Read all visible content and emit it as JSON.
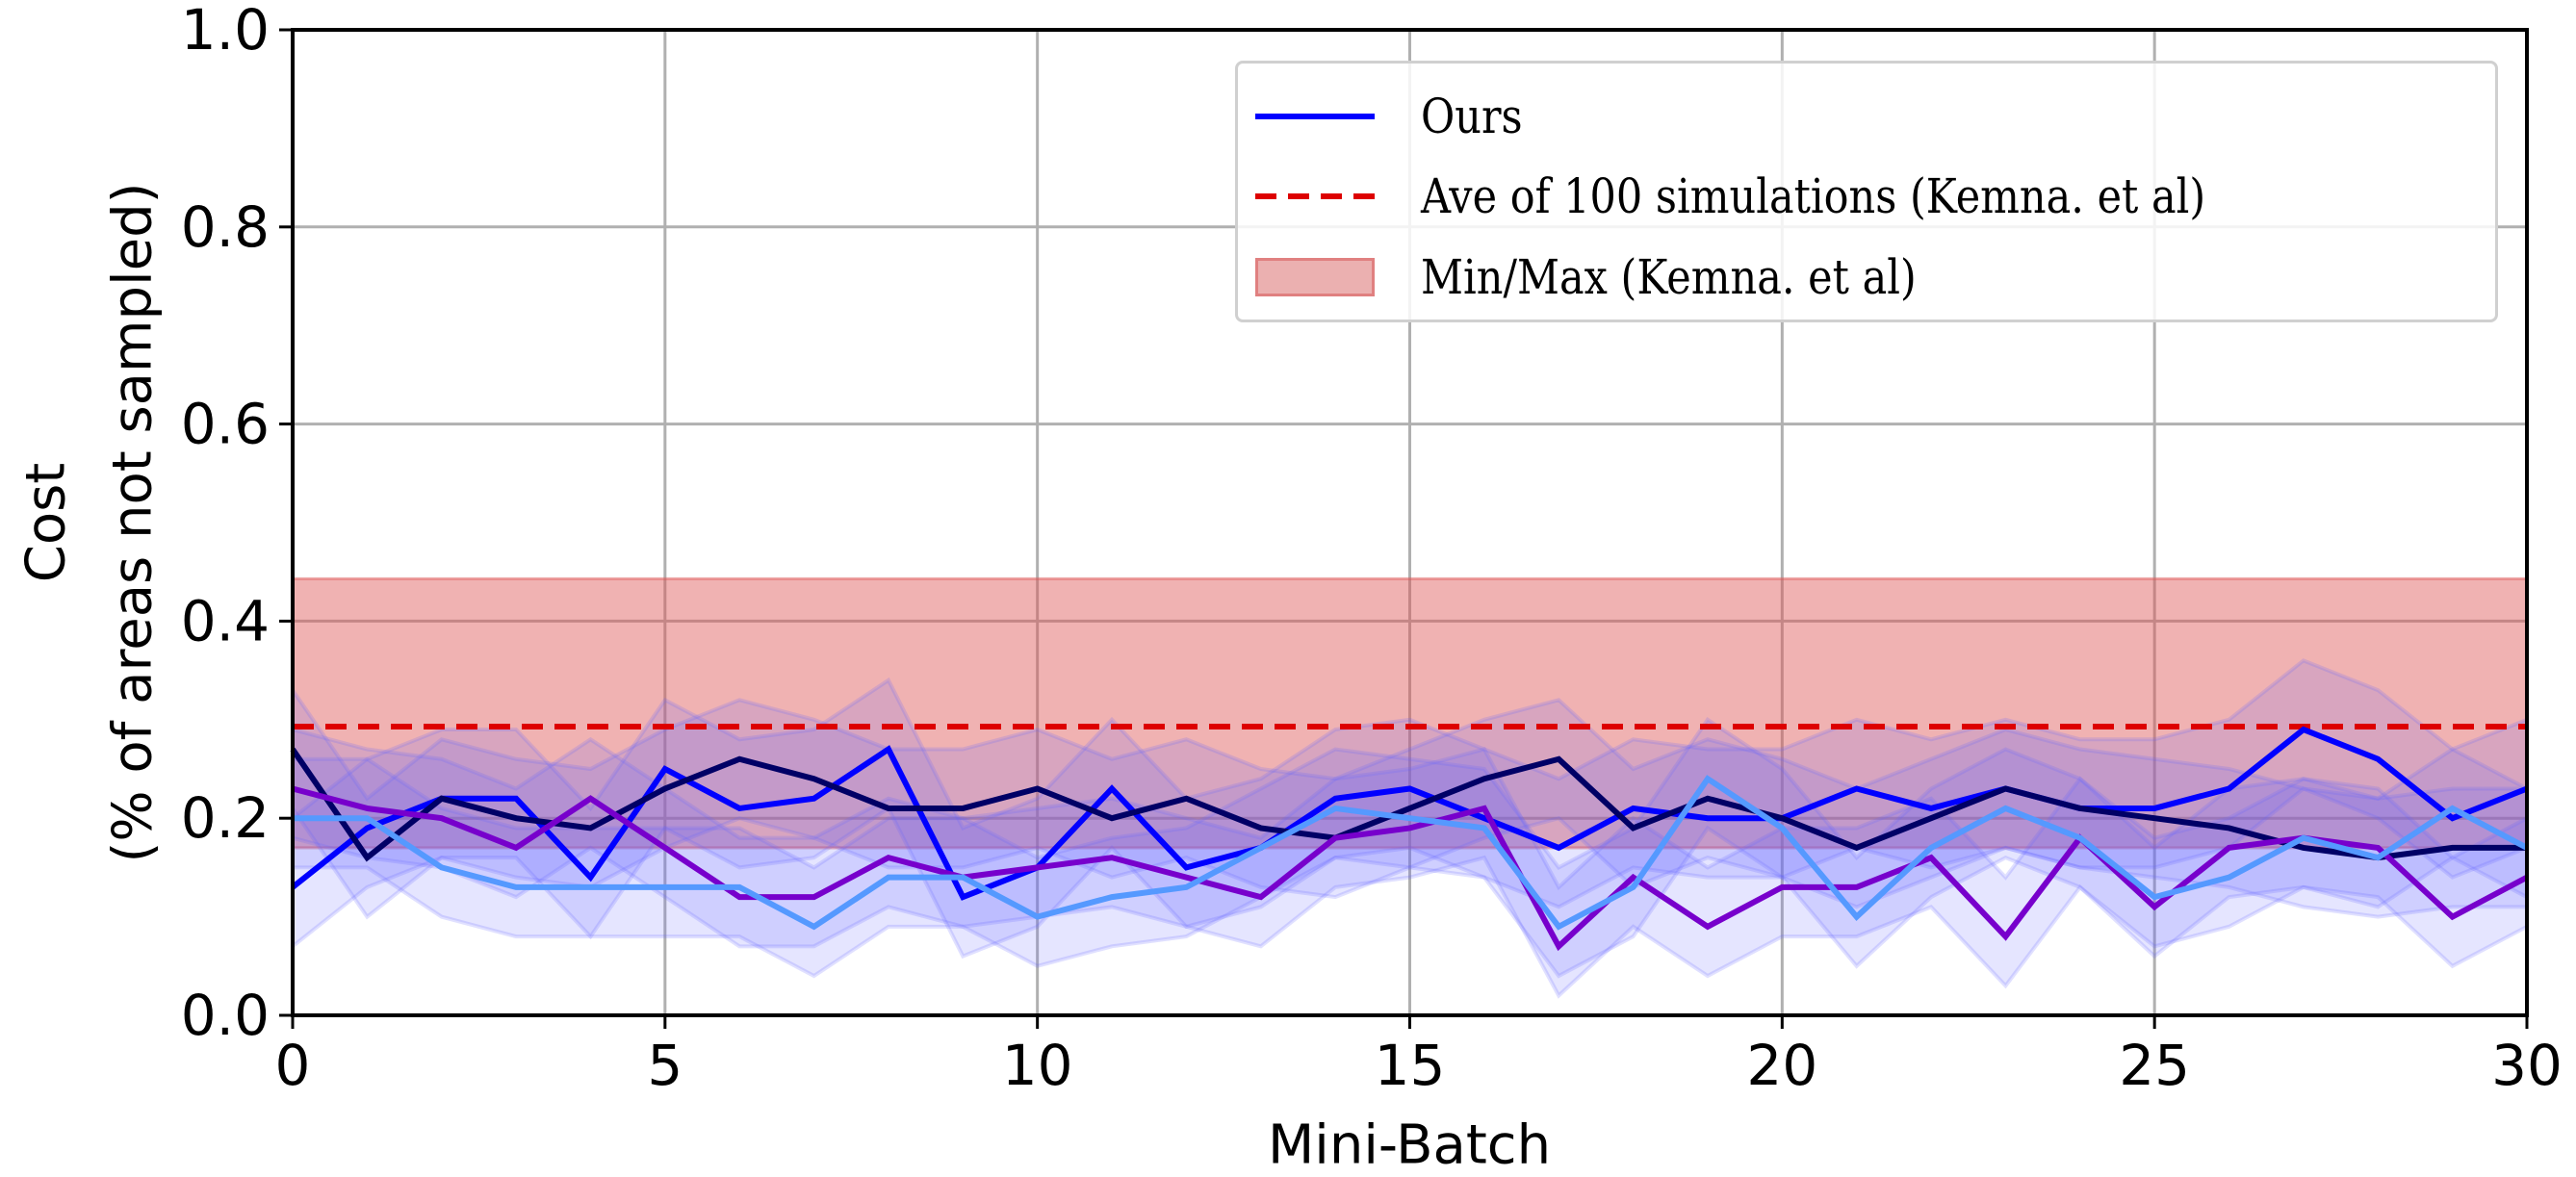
{
  "chart_data": {
    "type": "line",
    "title": "",
    "xlabel": "Mini-Batch",
    "ylabel_lines": [
      "Cost",
      "(% of areas not sampled)"
    ],
    "xlim": [
      0,
      30
    ],
    "ylim": [
      0,
      1.0
    ],
    "xticks": [
      "0",
      "5",
      "10",
      "15",
      "20",
      "25",
      "30"
    ],
    "yticks": [
      "0.0",
      "0.2",
      "0.4",
      "0.6",
      "0.8",
      "1.0"
    ],
    "grid": true,
    "legend_placement": "top-right",
    "legend": [
      "Ours",
      "Ave of 100 simulations (Kemna. et al)",
      "Min/Max (Kemna. et al)"
    ],
    "x": [
      0,
      1,
      2,
      3,
      4,
      5,
      6,
      7,
      8,
      9,
      10,
      11,
      12,
      13,
      14,
      15,
      16,
      17,
      18,
      19,
      20,
      21,
      22,
      23,
      24,
      25,
      26,
      27,
      28,
      29,
      30
    ],
    "reference": {
      "mean": 0.293,
      "min": 0.17,
      "max": 0.443,
      "mean_color": "#dd0000",
      "band_color": "#e08888"
    },
    "series": [
      {
        "name": "Ours",
        "color": "#0000ff",
        "values": [
          0.13,
          0.19,
          0.22,
          0.22,
          0.14,
          0.25,
          0.21,
          0.22,
          0.27,
          0.12,
          0.15,
          0.23,
          0.15,
          0.17,
          0.22,
          0.23,
          0.2,
          0.17,
          0.21,
          0.2,
          0.2,
          0.23,
          0.21,
          0.23,
          0.21,
          0.21,
          0.23,
          0.29,
          0.26,
          0.2,
          0.23
        ],
        "min": [
          0.07,
          0.13,
          0.16,
          0.16,
          0.08,
          0.19,
          0.15,
          0.16,
          0.21,
          0.06,
          0.09,
          0.17,
          0.09,
          0.11,
          0.16,
          0.17,
          0.14,
          0.11,
          0.15,
          0.14,
          0.14,
          0.17,
          0.15,
          0.17,
          0.15,
          0.15,
          0.17,
          0.23,
          0.2,
          0.14,
          0.17
        ],
        "max": [
          0.2,
          0.26,
          0.29,
          0.29,
          0.21,
          0.32,
          0.28,
          0.29,
          0.34,
          0.19,
          0.22,
          0.3,
          0.22,
          0.24,
          0.29,
          0.3,
          0.27,
          0.24,
          0.28,
          0.27,
          0.27,
          0.3,
          0.28,
          0.3,
          0.28,
          0.28,
          0.3,
          0.36,
          0.33,
          0.27,
          0.3
        ]
      },
      {
        "color": "#000066",
        "values": [
          0.27,
          0.16,
          0.22,
          0.2,
          0.19,
          0.23,
          0.26,
          0.24,
          0.21,
          0.21,
          0.23,
          0.2,
          0.22,
          0.19,
          0.18,
          0.21,
          0.24,
          0.26,
          0.19,
          0.22,
          0.2,
          0.17,
          0.2,
          0.23,
          0.21,
          0.2,
          0.19,
          0.17,
          0.16,
          0.17,
          0.17
        ],
        "min": [
          0.21,
          0.1,
          0.16,
          0.14,
          0.13,
          0.17,
          0.2,
          0.18,
          0.15,
          0.15,
          0.17,
          0.14,
          0.16,
          0.13,
          0.12,
          0.15,
          0.18,
          0.2,
          0.13,
          0.16,
          0.14,
          0.11,
          0.14,
          0.17,
          0.15,
          0.14,
          0.13,
          0.11,
          0.1,
          0.11,
          0.11
        ],
        "max": [
          0.33,
          0.22,
          0.28,
          0.26,
          0.25,
          0.29,
          0.32,
          0.3,
          0.27,
          0.27,
          0.29,
          0.26,
          0.28,
          0.25,
          0.24,
          0.27,
          0.3,
          0.32,
          0.25,
          0.28,
          0.26,
          0.23,
          0.26,
          0.29,
          0.27,
          0.26,
          0.25,
          0.23,
          0.22,
          0.23,
          0.23
        ]
      },
      {
        "color": "#7700cc",
        "values": [
          0.23,
          0.21,
          0.2,
          0.17,
          0.22,
          0.17,
          0.12,
          0.12,
          0.16,
          0.14,
          0.15,
          0.16,
          0.14,
          0.12,
          0.18,
          0.19,
          0.21,
          0.07,
          0.14,
          0.09,
          0.13,
          0.13,
          0.16,
          0.08,
          0.18,
          0.11,
          0.17,
          0.18,
          0.17,
          0.1,
          0.14
        ],
        "min": [
          0.18,
          0.16,
          0.15,
          0.12,
          0.17,
          0.12,
          0.07,
          0.07,
          0.11,
          0.09,
          0.1,
          0.11,
          0.09,
          0.07,
          0.13,
          0.14,
          0.16,
          0.02,
          0.09,
          0.04,
          0.08,
          0.08,
          0.11,
          0.03,
          0.13,
          0.06,
          0.12,
          0.13,
          0.12,
          0.05,
          0.09
        ],
        "max": [
          0.29,
          0.27,
          0.26,
          0.23,
          0.28,
          0.23,
          0.18,
          0.18,
          0.22,
          0.2,
          0.21,
          0.22,
          0.2,
          0.18,
          0.24,
          0.25,
          0.27,
          0.13,
          0.2,
          0.15,
          0.19,
          0.19,
          0.22,
          0.14,
          0.24,
          0.17,
          0.23,
          0.24,
          0.23,
          0.16,
          0.2
        ]
      },
      {
        "color": "#5599ff",
        "values": [
          0.2,
          0.2,
          0.15,
          0.13,
          0.13,
          0.13,
          0.13,
          0.09,
          0.14,
          0.14,
          0.1,
          0.12,
          0.13,
          0.17,
          0.21,
          0.2,
          0.19,
          0.09,
          0.13,
          0.24,
          0.19,
          0.1,
          0.17,
          0.21,
          0.18,
          0.12,
          0.14,
          0.18,
          0.16,
          0.21,
          0.17
        ],
        "min": [
          0.15,
          0.15,
          0.1,
          0.08,
          0.08,
          0.08,
          0.08,
          0.04,
          0.09,
          0.09,
          0.05,
          0.07,
          0.08,
          0.12,
          0.16,
          0.15,
          0.14,
          0.04,
          0.08,
          0.19,
          0.14,
          0.05,
          0.12,
          0.16,
          0.13,
          0.07,
          0.09,
          0.13,
          0.11,
          0.16,
          0.12
        ],
        "max": [
          0.26,
          0.26,
          0.21,
          0.19,
          0.19,
          0.19,
          0.19,
          0.15,
          0.2,
          0.2,
          0.16,
          0.18,
          0.19,
          0.23,
          0.27,
          0.26,
          0.25,
          0.15,
          0.19,
          0.3,
          0.25,
          0.16,
          0.23,
          0.27,
          0.24,
          0.18,
          0.2,
          0.24,
          0.22,
          0.27,
          0.23
        ]
      }
    ]
  }
}
